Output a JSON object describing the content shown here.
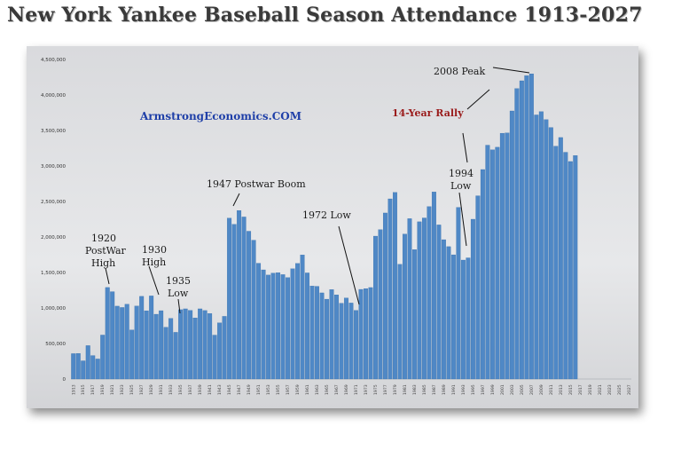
{
  "title": "New York Yankee Baseball Season Attendance 1913-2027",
  "watermark": "ArmstrongEconomics.COM",
  "colors": {
    "bar": "#4f88c6",
    "bar_edge": "#2f6aa8",
    "watermark": "#1f3fa8",
    "rally": "#9a1b1b",
    "text": "#222222"
  },
  "annotations": {
    "peak_2008": "2008 Peak",
    "rally": "14-Year Rally",
    "postwar_1947": "1947 Postwar Boom",
    "low_1972": "1972 Low",
    "low_1994_a": "1994",
    "low_1994_b": "Low",
    "high_1920_a": "1920",
    "high_1920_b": "PostWar",
    "high_1920_c": "High",
    "high_1930_a": "1930",
    "high_1930_b": "High",
    "low_1935_a": "1935",
    "low_1935_b": "Low"
  },
  "chart_data": {
    "type": "bar",
    "title": "New York Yankee Baseball Season Attendance 1913-2027",
    "xlabel": "",
    "ylabel": "",
    "ylim": [
      0,
      4500000
    ],
    "yticks": [
      "0",
      "500,000",
      "1,000,000",
      "1,500,000",
      "2,000,000",
      "2,500,000",
      "3,000,000",
      "3,500,000",
      "4,000,000",
      "4,500,000"
    ],
    "grid": false,
    "x_start_year": 1913,
    "x_end_year": 2027,
    "xtick_labels": [
      "1913",
      "1915",
      "1917",
      "1919",
      "1921",
      "1923",
      "1925",
      "1927",
      "1929",
      "1931",
      "1933",
      "1935",
      "1937",
      "1939",
      "1941",
      "1943",
      "1945",
      "1947",
      "1949",
      "1951",
      "1953",
      "1955",
      "1957",
      "1959",
      "1961",
      "1963",
      "1965",
      "1967",
      "1969",
      "1971",
      "1973",
      "1975",
      "1977",
      "1979",
      "1981",
      "1983",
      "1985",
      "1987",
      "1989",
      "1991",
      "1993",
      "1995",
      "1997",
      "1999",
      "2001",
      "2003",
      "2005",
      "2007",
      "2009",
      "2011",
      "2013",
      "2015",
      "2017",
      "2019",
      "2021",
      "2023",
      "2025",
      "2027"
    ],
    "values": [
      357000,
      360000,
      256000,
      470000,
      330000,
      282000,
      619000,
      1289000,
      1230000,
      1026000,
      1007000,
      1053000,
      690000,
      1027000,
      1164000,
      961000,
      1170000,
      912000,
      962000,
      729000,
      854000,
      657000,
      976000,
      988000,
      966000,
      860000,
      988000,
      964000,
      922000,
      618000,
      790000,
      882000,
      2265000,
      2178000,
      2373000,
      2282000,
      2081000,
      1955000,
      1630000,
      1537000,
      1464000,
      1491000,
      1497000,
      1470000,
      1428000,
      1552000,
      1627000,
      1747000,
      1494000,
      1309000,
      1305000,
      1213000,
      1124000,
      1259000,
      1185000,
      1067000,
      1141000,
      1070000,
      966000,
      1262000,
      1273000,
      1288000,
      2012000,
      2103000,
      2338000,
      2537000,
      2627000,
      1615000,
      2041000,
      2258000,
      1822000,
      2214000,
      2268000,
      2428000,
      2634000,
      2170000,
      1962000,
      1864000,
      1749000,
      2417000,
      1675000,
      1706000,
      2250000,
      2580000,
      2950000,
      3293000,
      3227000,
      3264000,
      3461000,
      3465000,
      3775000,
      4090000,
      4200000,
      4271000,
      4298000,
      3719000,
      3765000,
      3653000,
      3542000,
      3279000,
      3401000,
      3193000,
      3063000,
      3147000
    ]
  }
}
